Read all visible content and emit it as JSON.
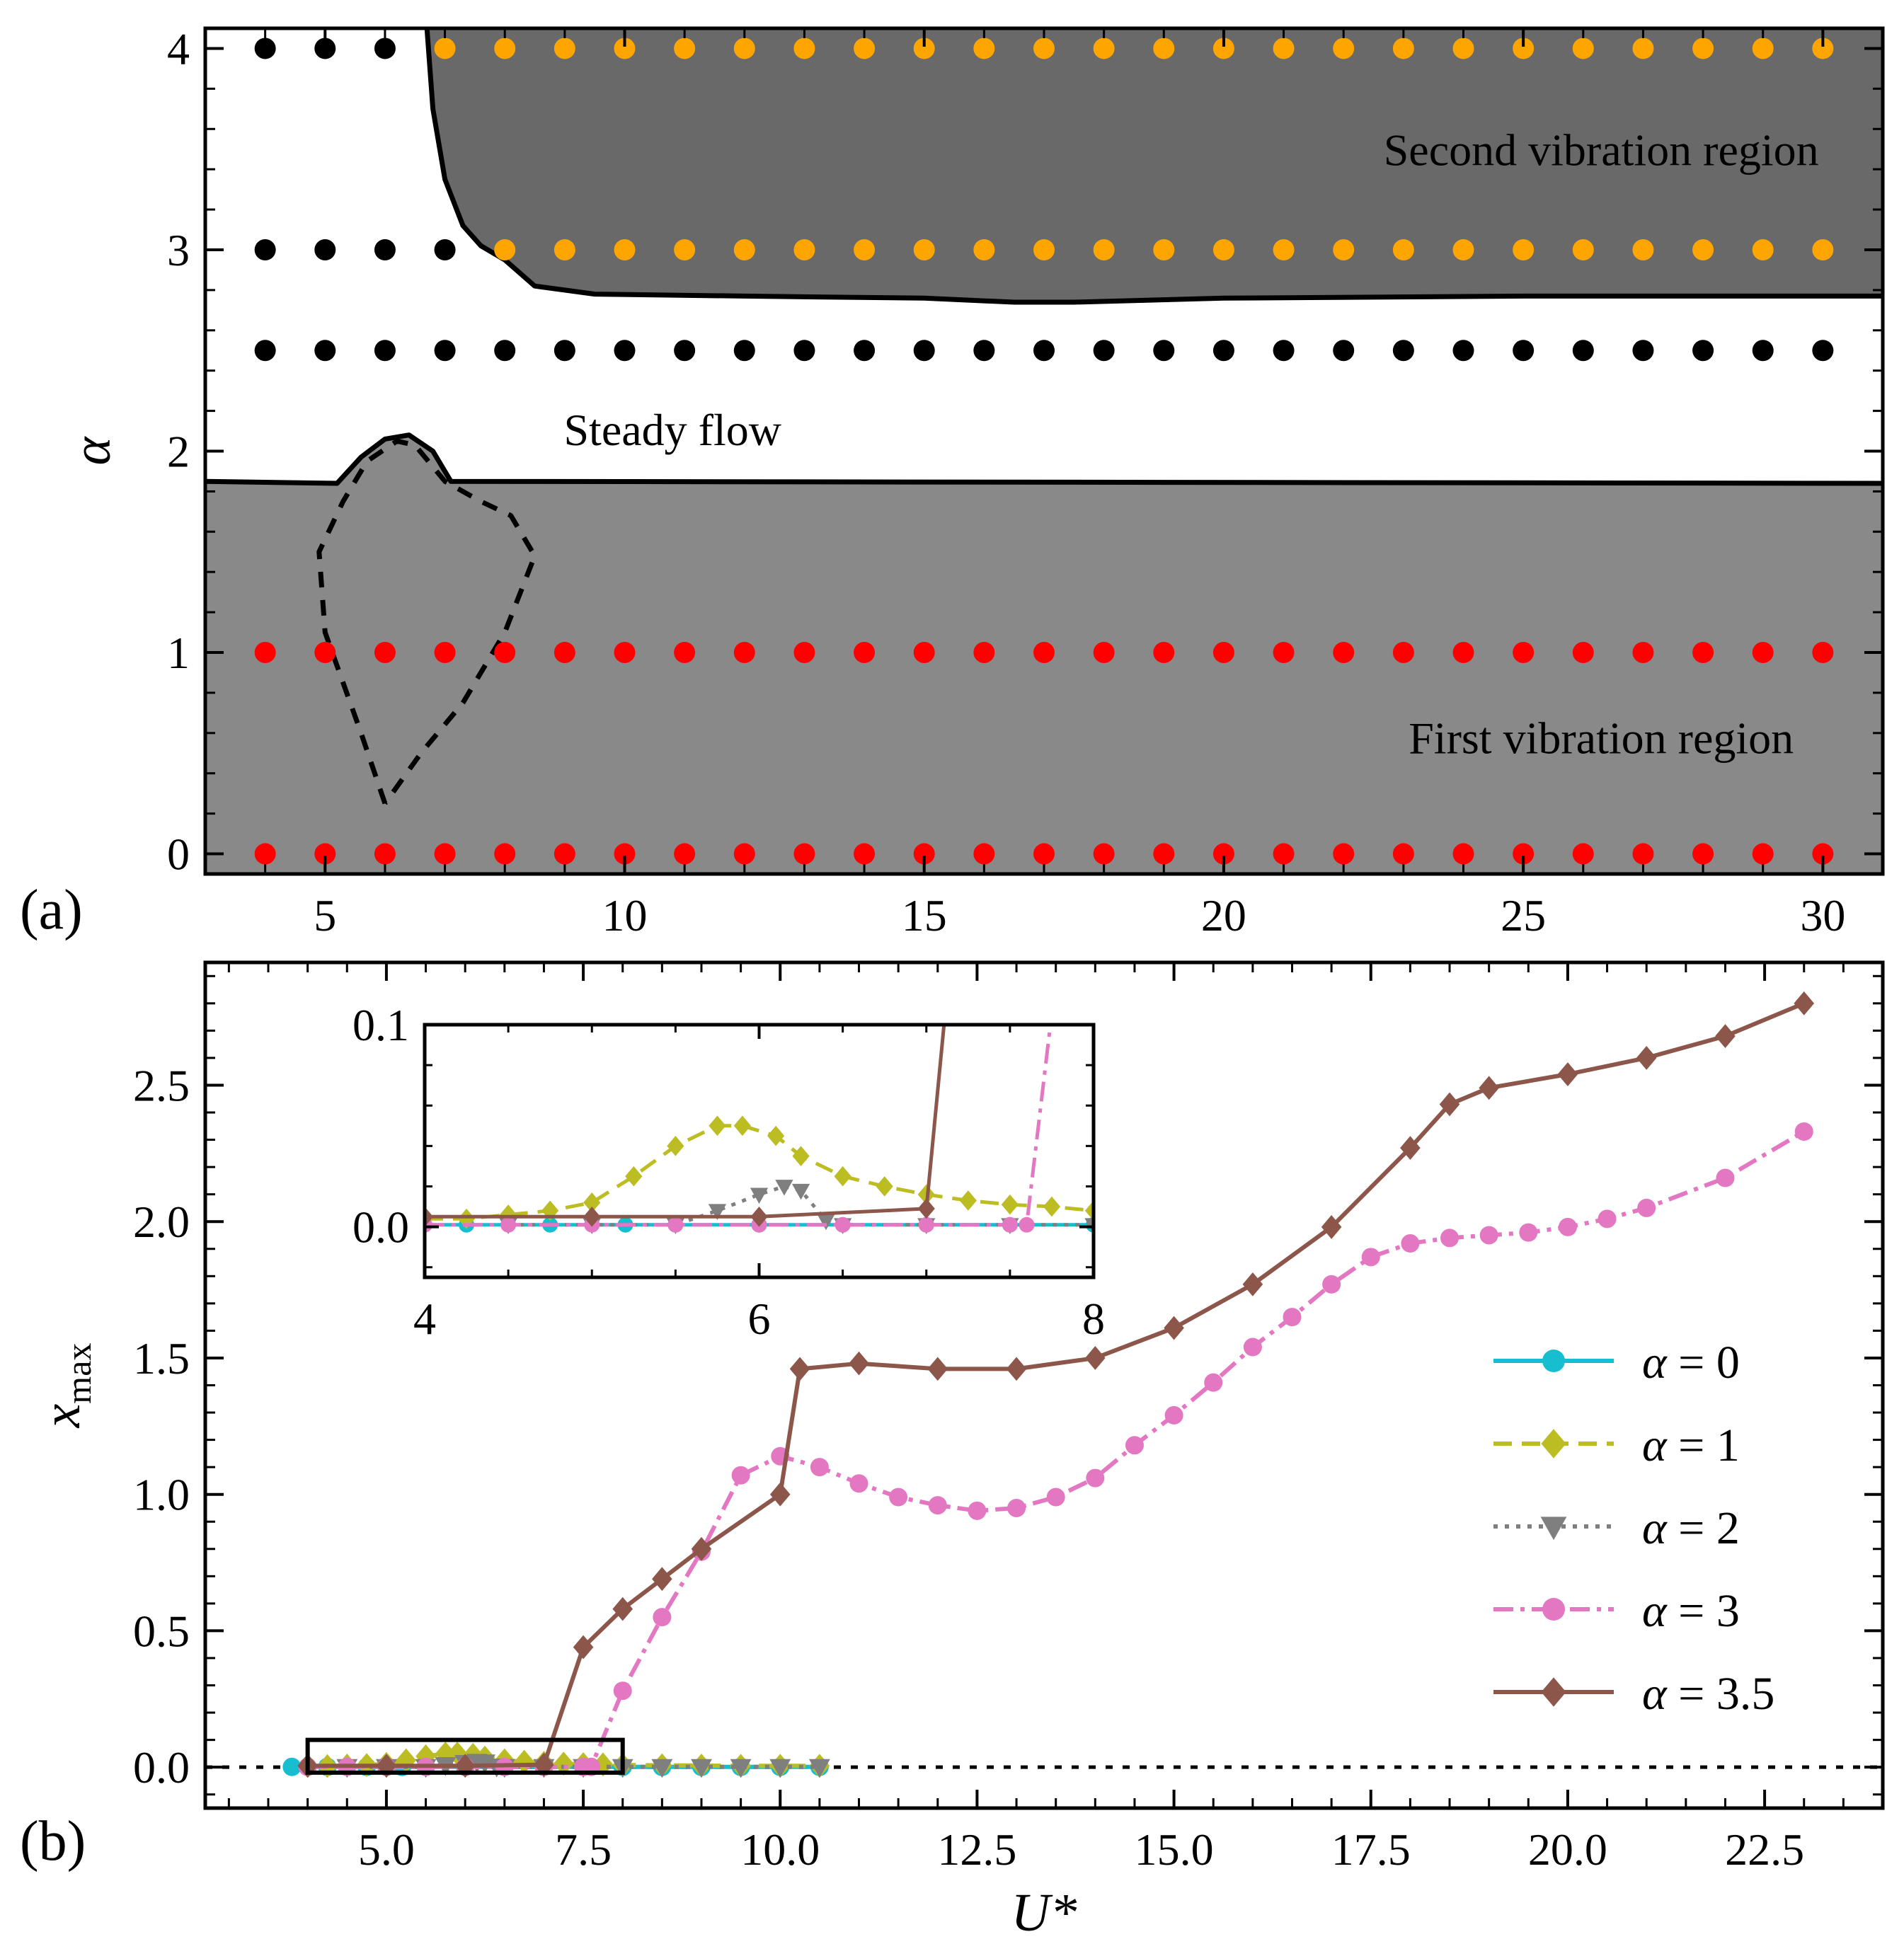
{
  "chart_data": [
    {
      "id": "a",
      "type": "scatter",
      "panel_label": "(a)",
      "title": "",
      "xlabel": "",
      "ylabel": "α",
      "xlim": [
        3,
        31
      ],
      "ylim": [
        -0.1,
        4.1
      ],
      "xticks": [
        5,
        10,
        15,
        20,
        25,
        30
      ],
      "xtick_labels": [
        "5",
        "10",
        "15",
        "20",
        "25",
        "30"
      ],
      "yticks": [
        0,
        1,
        2,
        3,
        4
      ],
      "ytick_labels": [
        "0",
        "1",
        "2",
        "3",
        "4"
      ],
      "colors": {
        "first_region": "#898989",
        "second_region": "#696969",
        "steady": "#000000",
        "first": "#ff0000",
        "second": "#ffa500"
      },
      "region_labels": {
        "second": "Second vibration region",
        "steady": "Steady flow",
        "first": "First vibration region"
      },
      "boundaries": {
        "lower_solid": [
          [
            3,
            1.85
          ],
          [
            5.2,
            1.84
          ],
          [
            5.6,
            1.97
          ],
          [
            6.0,
            2.06
          ],
          [
            6.4,
            2.08
          ],
          [
            6.8,
            2.0
          ],
          [
            7.1,
            1.85
          ],
          [
            31,
            1.84
          ]
        ],
        "upper_solid": [
          [
            6.7,
            4.1
          ],
          [
            6.8,
            3.7
          ],
          [
            7.0,
            3.35
          ],
          [
            7.3,
            3.12
          ],
          [
            7.6,
            3.02
          ],
          [
            8.0,
            2.95
          ],
          [
            8.5,
            2.82
          ],
          [
            9.5,
            2.78
          ],
          [
            12,
            2.77
          ],
          [
            15,
            2.76
          ],
          [
            16.5,
            2.74
          ],
          [
            17.5,
            2.74
          ],
          [
            20,
            2.76
          ],
          [
            25,
            2.77
          ],
          [
            31,
            2.77
          ]
        ],
        "dashed_loop": [
          [
            6.0,
            0.25
          ],
          [
            5.6,
            0.6
          ],
          [
            5.0,
            1.1
          ],
          [
            4.9,
            1.5
          ],
          [
            5.3,
            1.75
          ],
          [
            5.7,
            1.95
          ],
          [
            6.2,
            2.05
          ],
          [
            6.5,
            2.03
          ],
          [
            7.0,
            1.85
          ],
          [
            7.6,
            1.75
          ],
          [
            8.1,
            1.68
          ],
          [
            8.5,
            1.48
          ],
          [
            8.0,
            1.1
          ],
          [
            7.3,
            0.75
          ],
          [
            6.6,
            0.5
          ],
          [
            6.0,
            0.25
          ]
        ]
      },
      "series": [
        {
          "name": "steady",
          "color": "#000000",
          "points": [
            [
              4,
              4
            ],
            [
              5,
              4
            ],
            [
              6,
              4
            ],
            [
              4,
              3
            ],
            [
              5,
              3
            ],
            [
              6,
              3
            ],
            [
              7,
              3
            ],
            [
              4,
              2.5
            ],
            [
              5,
              2.5
            ],
            [
              6,
              2.5
            ],
            [
              7,
              2.5
            ],
            [
              8,
              2.5
            ],
            [
              9,
              2.5
            ],
            [
              10,
              2.5
            ],
            [
              11,
              2.5
            ],
            [
              12,
              2.5
            ],
            [
              13,
              2.5
            ],
            [
              14,
              2.5
            ],
            [
              15,
              2.5
            ],
            [
              16,
              2.5
            ],
            [
              17,
              2.5
            ],
            [
              18,
              2.5
            ],
            [
              19,
              2.5
            ],
            [
              20,
              2.5
            ],
            [
              21,
              2.5
            ],
            [
              22,
              2.5
            ],
            [
              23,
              2.5
            ],
            [
              24,
              2.5
            ],
            [
              25,
              2.5
            ],
            [
              26,
              2.5
            ],
            [
              27,
              2.5
            ],
            [
              28,
              2.5
            ],
            [
              29,
              2.5
            ],
            [
              30,
              2.5
            ]
          ]
        },
        {
          "name": "second",
          "color": "#ffa500",
          "points": [
            [
              7,
              4
            ],
            [
              8,
              4
            ],
            [
              9,
              4
            ],
            [
              10,
              4
            ],
            [
              11,
              4
            ],
            [
              12,
              4
            ],
            [
              13,
              4
            ],
            [
              14,
              4
            ],
            [
              15,
              4
            ],
            [
              16,
              4
            ],
            [
              17,
              4
            ],
            [
              18,
              4
            ],
            [
              19,
              4
            ],
            [
              20,
              4
            ],
            [
              21,
              4
            ],
            [
              22,
              4
            ],
            [
              23,
              4
            ],
            [
              24,
              4
            ],
            [
              25,
              4
            ],
            [
              26,
              4
            ],
            [
              27,
              4
            ],
            [
              28,
              4
            ],
            [
              29,
              4
            ],
            [
              30,
              4
            ],
            [
              8,
              3
            ],
            [
              9,
              3
            ],
            [
              10,
              3
            ],
            [
              11,
              3
            ],
            [
              12,
              3
            ],
            [
              13,
              3
            ],
            [
              14,
              3
            ],
            [
              15,
              3
            ],
            [
              16,
              3
            ],
            [
              17,
              3
            ],
            [
              18,
              3
            ],
            [
              19,
              3
            ],
            [
              20,
              3
            ],
            [
              21,
              3
            ],
            [
              22,
              3
            ],
            [
              23,
              3
            ],
            [
              24,
              3
            ],
            [
              25,
              3
            ],
            [
              26,
              3
            ],
            [
              27,
              3
            ],
            [
              28,
              3
            ],
            [
              29,
              3
            ],
            [
              30,
              3
            ]
          ]
        },
        {
          "name": "first",
          "color": "#ff0000",
          "points": [
            [
              4,
              1
            ],
            [
              5,
              1
            ],
            [
              6,
              1
            ],
            [
              7,
              1
            ],
            [
              8,
              1
            ],
            [
              9,
              1
            ],
            [
              10,
              1
            ],
            [
              11,
              1
            ],
            [
              12,
              1
            ],
            [
              13,
              1
            ],
            [
              14,
              1
            ],
            [
              15,
              1
            ],
            [
              16,
              1
            ],
            [
              17,
              1
            ],
            [
              18,
              1
            ],
            [
              19,
              1
            ],
            [
              20,
              1
            ],
            [
              21,
              1
            ],
            [
              22,
              1
            ],
            [
              23,
              1
            ],
            [
              24,
              1
            ],
            [
              25,
              1
            ],
            [
              26,
              1
            ],
            [
              27,
              1
            ],
            [
              28,
              1
            ],
            [
              29,
              1
            ],
            [
              30,
              1
            ],
            [
              4,
              0
            ],
            [
              5,
              0
            ],
            [
              6,
              0
            ],
            [
              7,
              0
            ],
            [
              8,
              0
            ],
            [
              9,
              0
            ],
            [
              10,
              0
            ],
            [
              11,
              0
            ],
            [
              12,
              0
            ],
            [
              13,
              0
            ],
            [
              14,
              0
            ],
            [
              15,
              0
            ],
            [
              16,
              0
            ],
            [
              17,
              0
            ],
            [
              18,
              0
            ],
            [
              19,
              0
            ],
            [
              20,
              0
            ],
            [
              21,
              0
            ],
            [
              22,
              0
            ],
            [
              23,
              0
            ],
            [
              24,
              0
            ],
            [
              25,
              0
            ],
            [
              26,
              0
            ],
            [
              27,
              0
            ],
            [
              28,
              0
            ],
            [
              29,
              0
            ],
            [
              30,
              0
            ]
          ]
        }
      ]
    },
    {
      "id": "b",
      "type": "line",
      "panel_label": "(b)",
      "title": "",
      "xlabel": "U*",
      "ylabel": "x_max",
      "xlim": [
        2.7,
        24
      ],
      "ylim": [
        -0.15,
        2.95
      ],
      "xticks": [
        5,
        7.5,
        10,
        12.5,
        15,
        17.5,
        20,
        22.5
      ],
      "xtick_labels": [
        "5.0",
        "7.5",
        "10.0",
        "12.5",
        "15.0",
        "17.5",
        "20.0",
        "22.5"
      ],
      "yticks": [
        0,
        0.5,
        1.0,
        1.5,
        2.0,
        2.5
      ],
      "ytick_labels": [
        "0.0",
        "0.5",
        "1.0",
        "1.5",
        "2.0",
        "2.5"
      ],
      "zero_line": "dotted",
      "legend_position": "lower-right",
      "series": [
        {
          "name": "α = 0",
          "label": "0",
          "color": "#17becf",
          "marker": "circle",
          "dash": "solid",
          "x": [
            3.8,
            4.25,
            4.75,
            5.2,
            5.5,
            6.0,
            6.5,
            7.0,
            7.5,
            8.0,
            8.5,
            9.0,
            9.5,
            10.0,
            10.5
          ],
          "y": [
            0.001,
            0.001,
            0.001,
            0.001,
            0.001,
            0.001,
            0.001,
            0.001,
            0.001,
            0.001,
            0.001,
            0.001,
            0.001,
            0.001,
            0.001
          ]
        },
        {
          "name": "α = 1",
          "label": "1",
          "color": "#bcbd22",
          "marker": "diamond",
          "dash": "dashed",
          "x": [
            4.0,
            4.25,
            4.5,
            4.75,
            5.0,
            5.25,
            5.5,
            5.75,
            5.9,
            6.1,
            6.25,
            6.5,
            6.75,
            7.0,
            7.25,
            7.5,
            7.75,
            8.0,
            8.5,
            9.0,
            9.5,
            10.0,
            10.5
          ],
          "y": [
            0.004,
            0.004,
            0.006,
            0.008,
            0.012,
            0.025,
            0.04,
            0.05,
            0.05,
            0.045,
            0.035,
            0.025,
            0.02,
            0.016,
            0.013,
            0.011,
            0.01,
            0.008,
            0.007,
            0.006,
            0.005,
            0.005,
            0.005
          ]
        },
        {
          "name": "α = 2",
          "label": "2",
          "color": "#7f7f7f",
          "marker": "triangle-down",
          "dash": "dotted",
          "x": [
            4.5,
            5.0,
            5.5,
            5.75,
            6.0,
            6.15,
            6.25,
            6.4,
            6.5,
            7.0,
            7.5,
            8.0,
            8.5,
            9.0,
            9.5,
            10.0,
            10.5
          ],
          "y": [
            0.001,
            0.001,
            0.001,
            0.008,
            0.016,
            0.02,
            0.018,
            0.003,
            0.001,
            0.001,
            0.001,
            0.001,
            0.001,
            0.001,
            0.001,
            0.001,
            0.001
          ]
        },
        {
          "name": "α = 3",
          "label": "3",
          "color": "#e377c2",
          "marker": "circle",
          "dash": "dashdot",
          "x": [
            4.0,
            4.5,
            5.0,
            5.5,
            6.0,
            6.5,
            7.0,
            7.5,
            7.6,
            8.0,
            8.5,
            9.0,
            9.5,
            10.0,
            10.5,
            11.0,
            11.5,
            12.0,
            12.5,
            13.0,
            13.5,
            14.0,
            14.5,
            15.0,
            15.5,
            16.0,
            16.5,
            17.0,
            17.5,
            18.0,
            18.5,
            19.0,
            19.5,
            20.0,
            20.5,
            21.0,
            22.0,
            23.0
          ],
          "y": [
            0.001,
            0.001,
            0.001,
            0.001,
            0.001,
            0.001,
            0.001,
            0.001,
            0.001,
            0.28,
            0.55,
            0.79,
            1.07,
            1.14,
            1.1,
            1.04,
            0.99,
            0.96,
            0.94,
            0.95,
            0.99,
            1.06,
            1.18,
            1.29,
            1.41,
            1.54,
            1.65,
            1.77,
            1.87,
            1.92,
            1.94,
            1.95,
            1.96,
            1.98,
            2.01,
            2.05,
            2.16,
            2.33
          ]
        },
        {
          "name": "α = 3.5",
          "label": "3.5",
          "color": "#8c564b",
          "marker": "diamond",
          "dash": "solid",
          "x": [
            4.0,
            5.0,
            6.0,
            7.0,
            7.5,
            8.0,
            8.5,
            9.0,
            10.0,
            10.25,
            11.0,
            12.0,
            13.0,
            14.0,
            15.0,
            16.0,
            17.0,
            18.0,
            18.5,
            19.0,
            20.0,
            21.0,
            22.0,
            23.0
          ],
          "y": [
            0.005,
            0.005,
            0.005,
            0.009,
            0.44,
            0.58,
            0.69,
            0.8,
            1.0,
            1.46,
            1.48,
            1.46,
            1.46,
            1.5,
            1.61,
            1.77,
            1.98,
            2.27,
            2.43,
            2.49,
            2.54,
            2.6,
            2.68,
            2.8
          ]
        }
      ],
      "highlight_box": {
        "x": [
          4.0,
          8.0
        ],
        "y": [
          -0.02,
          0.1
        ]
      },
      "inset": {
        "xlim": [
          4,
          8
        ],
        "ylim": [
          -0.025,
          0.1
        ],
        "xticks": [
          4,
          6,
          8
        ],
        "xtick_labels": [
          "4",
          "6",
          "8"
        ],
        "yticks": [
          0,
          0.1
        ],
        "ytick_labels": [
          "0.0",
          "0.1"
        ]
      }
    }
  ]
}
